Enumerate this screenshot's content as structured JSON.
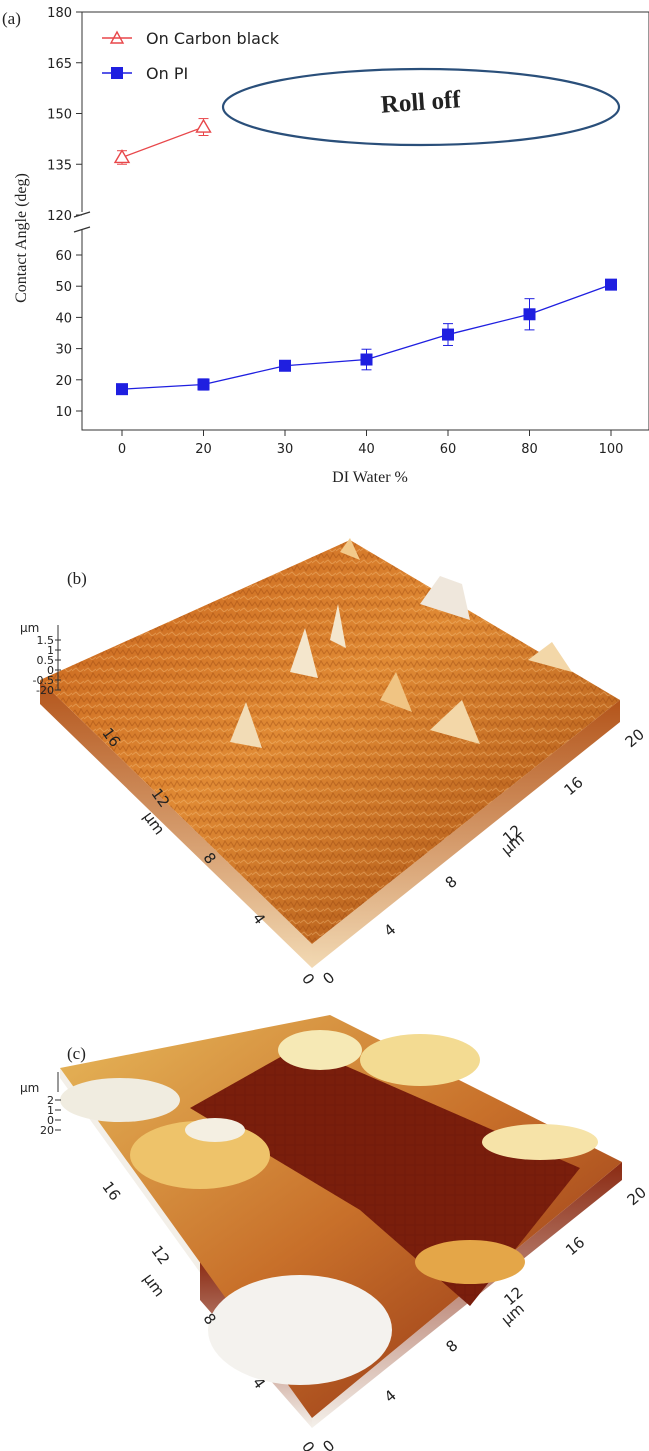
{
  "chart_data": [
    {
      "type": "line",
      "panel_label": "(a)",
      "xlabel": "DI Water %",
      "ylabel": "Contact Angle (deg)",
      "categories": [
        "0",
        "20",
        "30",
        "40",
        "60",
        "80",
        "100"
      ],
      "yticks_upper": [
        "120",
        "135",
        "150",
        "165",
        "180"
      ],
      "yticks_lower": [
        "10",
        "20",
        "30",
        "40",
        "50",
        "60"
      ],
      "ylim_upper": [
        120,
        180
      ],
      "ylim_lower": [
        5,
        65
      ],
      "axis_break": true,
      "grid": false,
      "legend_position": "top-left",
      "annotation": "Roll off",
      "series": [
        {
          "name": "On Carbon black",
          "marker": "open-triangle",
          "color": "#e8474a",
          "values": [
            137,
            146,
            null,
            null,
            null,
            null,
            null
          ],
          "errors": [
            2,
            2.5,
            null,
            null,
            null,
            null,
            null
          ]
        },
        {
          "name": "On PI",
          "marker": "filled-square",
          "color": "#1f1fe0",
          "values": [
            17,
            18.5,
            24.5,
            26.5,
            34.5,
            41,
            50.5
          ],
          "errors": [
            1.2,
            1.8,
            1.2,
            3.3,
            3.5,
            5,
            1
          ]
        }
      ]
    },
    {
      "type": "heatmap",
      "description_type": "3d-surface",
      "panel_label": "(b)",
      "z_unit": "µm",
      "z_ticks": [
        "1.5",
        "1",
        "0.5",
        "0",
        "-0.5",
        "-20"
      ],
      "x_ticks": [
        "0",
        "4",
        "8",
        "12",
        "16",
        "20"
      ],
      "y_ticks": [
        "0",
        "4",
        "8",
        "12",
        "16"
      ],
      "x_unit": "µm",
      "y_unit": "µm",
      "colors": [
        "#7a2e00",
        "#d9701a",
        "#f2b36a",
        "#f3ead8"
      ]
    },
    {
      "type": "heatmap",
      "description_type": "3d-surface",
      "panel_label": "(c)",
      "z_unit": "µm",
      "z_ticks": [
        "2",
        "1",
        "0",
        "20"
      ],
      "x_ticks": [
        "0",
        "4",
        "8",
        "12",
        "16",
        "20"
      ],
      "y_ticks": [
        "0",
        "4",
        "8",
        "12",
        "16"
      ],
      "x_unit": "µm",
      "y_unit": "µm",
      "colors": [
        "#5a1208",
        "#9b3418",
        "#d98a2a",
        "#f4e0a0",
        "#f2f2ee"
      ]
    }
  ]
}
